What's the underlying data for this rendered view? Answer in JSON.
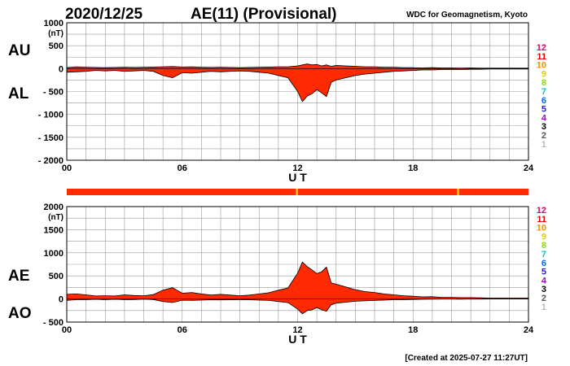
{
  "header": {
    "date": "2020/12/25",
    "title": "AE(11) (Provisional)",
    "source": "WDC for Geomagnetism, Kyoto"
  },
  "footer": {
    "created": "[Created at 2025-07-27 11:27UT]"
  },
  "station_count": {
    "labels": [
      "12",
      "11",
      "10",
      "9",
      "8",
      "7",
      "6",
      "5",
      "4",
      "3",
      "2",
      "1"
    ],
    "colors": [
      "#e0006e",
      "#e00000",
      "#ff8c00",
      "#e0d000",
      "#88dd00",
      "#00c8c8",
      "#0066ff",
      "#2222cc",
      "#aa00cc",
      "#000000",
      "#555555",
      "#bbbbbb"
    ]
  },
  "colors": {
    "fill": "#ff2a00",
    "outline": "#000000",
    "grid": "#999999",
    "bar": "#ff2a00",
    "bar_tick": "#e0c000"
  },
  "chart_data": [
    {
      "type": "area",
      "panel": "top",
      "series_labels": [
        "AU",
        "AL"
      ],
      "ylabel": "(nT)",
      "xlabel": "U T",
      "ylim": [
        -2000,
        1000
      ],
      "yticks": [
        1000,
        500,
        0,
        -500,
        -1000,
        -1500,
        -2000
      ],
      "ytick_labels": [
        "1000",
        "500",
        "0",
        "- 500",
        "- 1000",
        "- 1500",
        "- 2000"
      ],
      "xlim": [
        0,
        24
      ],
      "xticks": [
        0,
        6,
        12,
        18,
        24
      ],
      "xtick_labels": [
        "00",
        "06",
        "12",
        "18",
        "24"
      ],
      "grid": true,
      "x_hours": [
        0,
        0.5,
        1,
        1.5,
        2,
        2.5,
        3,
        3.5,
        4,
        4.5,
        5,
        5.5,
        6,
        6.5,
        7,
        7.5,
        8,
        8.5,
        9,
        9.5,
        10,
        10.5,
        11,
        11.5,
        12,
        12.25,
        12.5,
        12.75,
        13,
        13.25,
        13.5,
        13.75,
        14,
        14.5,
        15,
        15.5,
        16,
        16.5,
        17,
        17.5,
        18,
        18.5,
        19,
        19.5,
        20,
        20.5,
        21,
        21.5,
        22,
        22.5,
        23,
        23.5,
        24
      ],
      "upper": [
        20,
        40,
        30,
        25,
        20,
        25,
        30,
        25,
        30,
        35,
        40,
        45,
        35,
        40,
        30,
        25,
        30,
        25,
        20,
        25,
        30,
        35,
        40,
        40,
        60,
        80,
        100,
        80,
        90,
        60,
        80,
        50,
        70,
        60,
        50,
        40,
        40,
        30,
        30,
        20,
        20,
        15,
        20,
        15,
        15,
        10,
        15,
        10,
        10,
        10,
        10,
        10,
        10
      ],
      "lower": [
        -80,
        -70,
        -60,
        -40,
        -50,
        -40,
        -60,
        -50,
        -40,
        -60,
        -150,
        -200,
        -90,
        -100,
        -80,
        -60,
        -70,
        -60,
        -50,
        -60,
        -80,
        -100,
        -150,
        -200,
        -500,
        -720,
        -600,
        -550,
        -460,
        -530,
        -610,
        -300,
        -250,
        -200,
        -150,
        -120,
        -100,
        -80,
        -60,
        -50,
        -40,
        -30,
        -30,
        -20,
        -20,
        -20,
        -15,
        -15,
        -10,
        -10,
        -10,
        -10,
        -10
      ]
    },
    {
      "type": "area",
      "panel": "bottom",
      "series_labels": [
        "AE",
        "AO"
      ],
      "ylabel": "(nT)",
      "xlabel": "U T",
      "ylim": [
        -500,
        2000
      ],
      "yticks": [
        2000,
        1500,
        1000,
        500,
        0,
        -500
      ],
      "ytick_labels": [
        "2000",
        "1500",
        "1000",
        "500",
        "0",
        "- 500"
      ],
      "xlim": [
        0,
        24
      ],
      "xticks": [
        0,
        6,
        12,
        18,
        24
      ],
      "xtick_labels": [
        "00",
        "06",
        "12",
        "18",
        "24"
      ],
      "grid": true,
      "x_hours": [
        0,
        0.5,
        1,
        1.5,
        2,
        2.5,
        3,
        3.5,
        4,
        4.5,
        5,
        5.5,
        6,
        6.5,
        7,
        7.5,
        8,
        8.5,
        9,
        9.5,
        10,
        10.5,
        11,
        11.5,
        12,
        12.25,
        12.5,
        12.75,
        13,
        13.25,
        13.5,
        13.75,
        14,
        14.5,
        15,
        15.5,
        16,
        16.5,
        17,
        17.5,
        18,
        18.5,
        19,
        19.5,
        20,
        20.5,
        21,
        21.5,
        22,
        22.5,
        23,
        23.5,
        24
      ],
      "upper": [
        100,
        110,
        90,
        65,
        70,
        65,
        90,
        75,
        70,
        95,
        190,
        245,
        125,
        140,
        110,
        85,
        100,
        85,
        70,
        85,
        110,
        135,
        190,
        240,
        560,
        800,
        700,
        630,
        550,
        590,
        690,
        350,
        320,
        260,
        200,
        160,
        140,
        110,
        90,
        70,
        60,
        45,
        50,
        35,
        35,
        30,
        30,
        25,
        20,
        20,
        20,
        20,
        20
      ],
      "lower": [
        -30,
        -15,
        -15,
        -7,
        -15,
        -7,
        -15,
        -12,
        -5,
        -12,
        -55,
        -77,
        -27,
        -30,
        -25,
        -17,
        -20,
        -17,
        -15,
        -17,
        -25,
        -32,
        -55,
        -80,
        -220,
        -320,
        -250,
        -235,
        -185,
        -235,
        -265,
        -125,
        -90,
        -70,
        -50,
        -40,
        -30,
        -25,
        -15,
        -15,
        -10,
        -7,
        -5,
        -2,
        -2,
        -5,
        0,
        -2,
        0,
        0,
        0,
        0,
        0
      ]
    }
  ]
}
